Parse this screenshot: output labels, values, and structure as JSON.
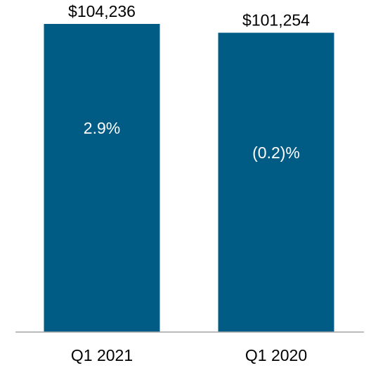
{
  "chart_data": {
    "type": "bar",
    "categories": [
      "Q1 2021",
      "Q1 2020"
    ],
    "values": [
      104236,
      101254
    ],
    "value_labels": [
      "$104,236",
      "$101,254"
    ],
    "inner_labels": [
      "2.9%",
      "(0.2)%"
    ],
    "title": "",
    "xlabel": "",
    "ylabel": "",
    "grid": false,
    "legend": "none",
    "bar_color": "#005b85",
    "axis_color": "#a6a6a6"
  }
}
